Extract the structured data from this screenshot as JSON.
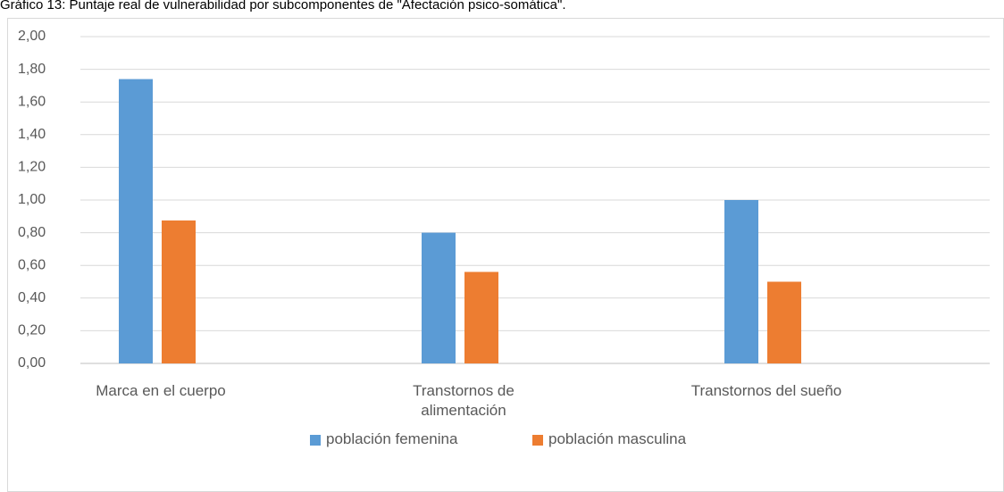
{
  "chart_data": {
    "type": "bar",
    "title": "Gráfico 13: Puntaje real de vulnerabilidad por subcomponentes de \"Afectación psico-somática\".",
    "categories": [
      "Marca en el cuerpo",
      "Transtornos de alimentación",
      "Transtornos del sueño"
    ],
    "series": [
      {
        "name": "población femenina",
        "color": "#5b9bd5",
        "values": [
          1.74,
          0.8,
          1.0
        ]
      },
      {
        "name": "población masculina",
        "color": "#ed7d31",
        "values": [
          0.875,
          0.56,
          0.5
        ]
      }
    ],
    "ylim": [
      0,
      2
    ],
    "yticks": [
      {
        "value": 0,
        "label": "0,00"
      },
      {
        "value": 0.2,
        "label": "0,20"
      },
      {
        "value": 0.4,
        "label": "0,40"
      },
      {
        "value": 0.6,
        "label": "0,60"
      },
      {
        "value": 0.8,
        "label": "0,80"
      },
      {
        "value": 1.0,
        "label": "1,00"
      },
      {
        "value": 1.2,
        "label": "1,20"
      },
      {
        "value": 1.4,
        "label": "1,40"
      },
      {
        "value": 1.6,
        "label": "1,60"
      },
      {
        "value": 1.8,
        "label": "1,80"
      },
      {
        "value": 2.0,
        "label": "2,00"
      }
    ],
    "grid": true,
    "legend": "bottom"
  }
}
